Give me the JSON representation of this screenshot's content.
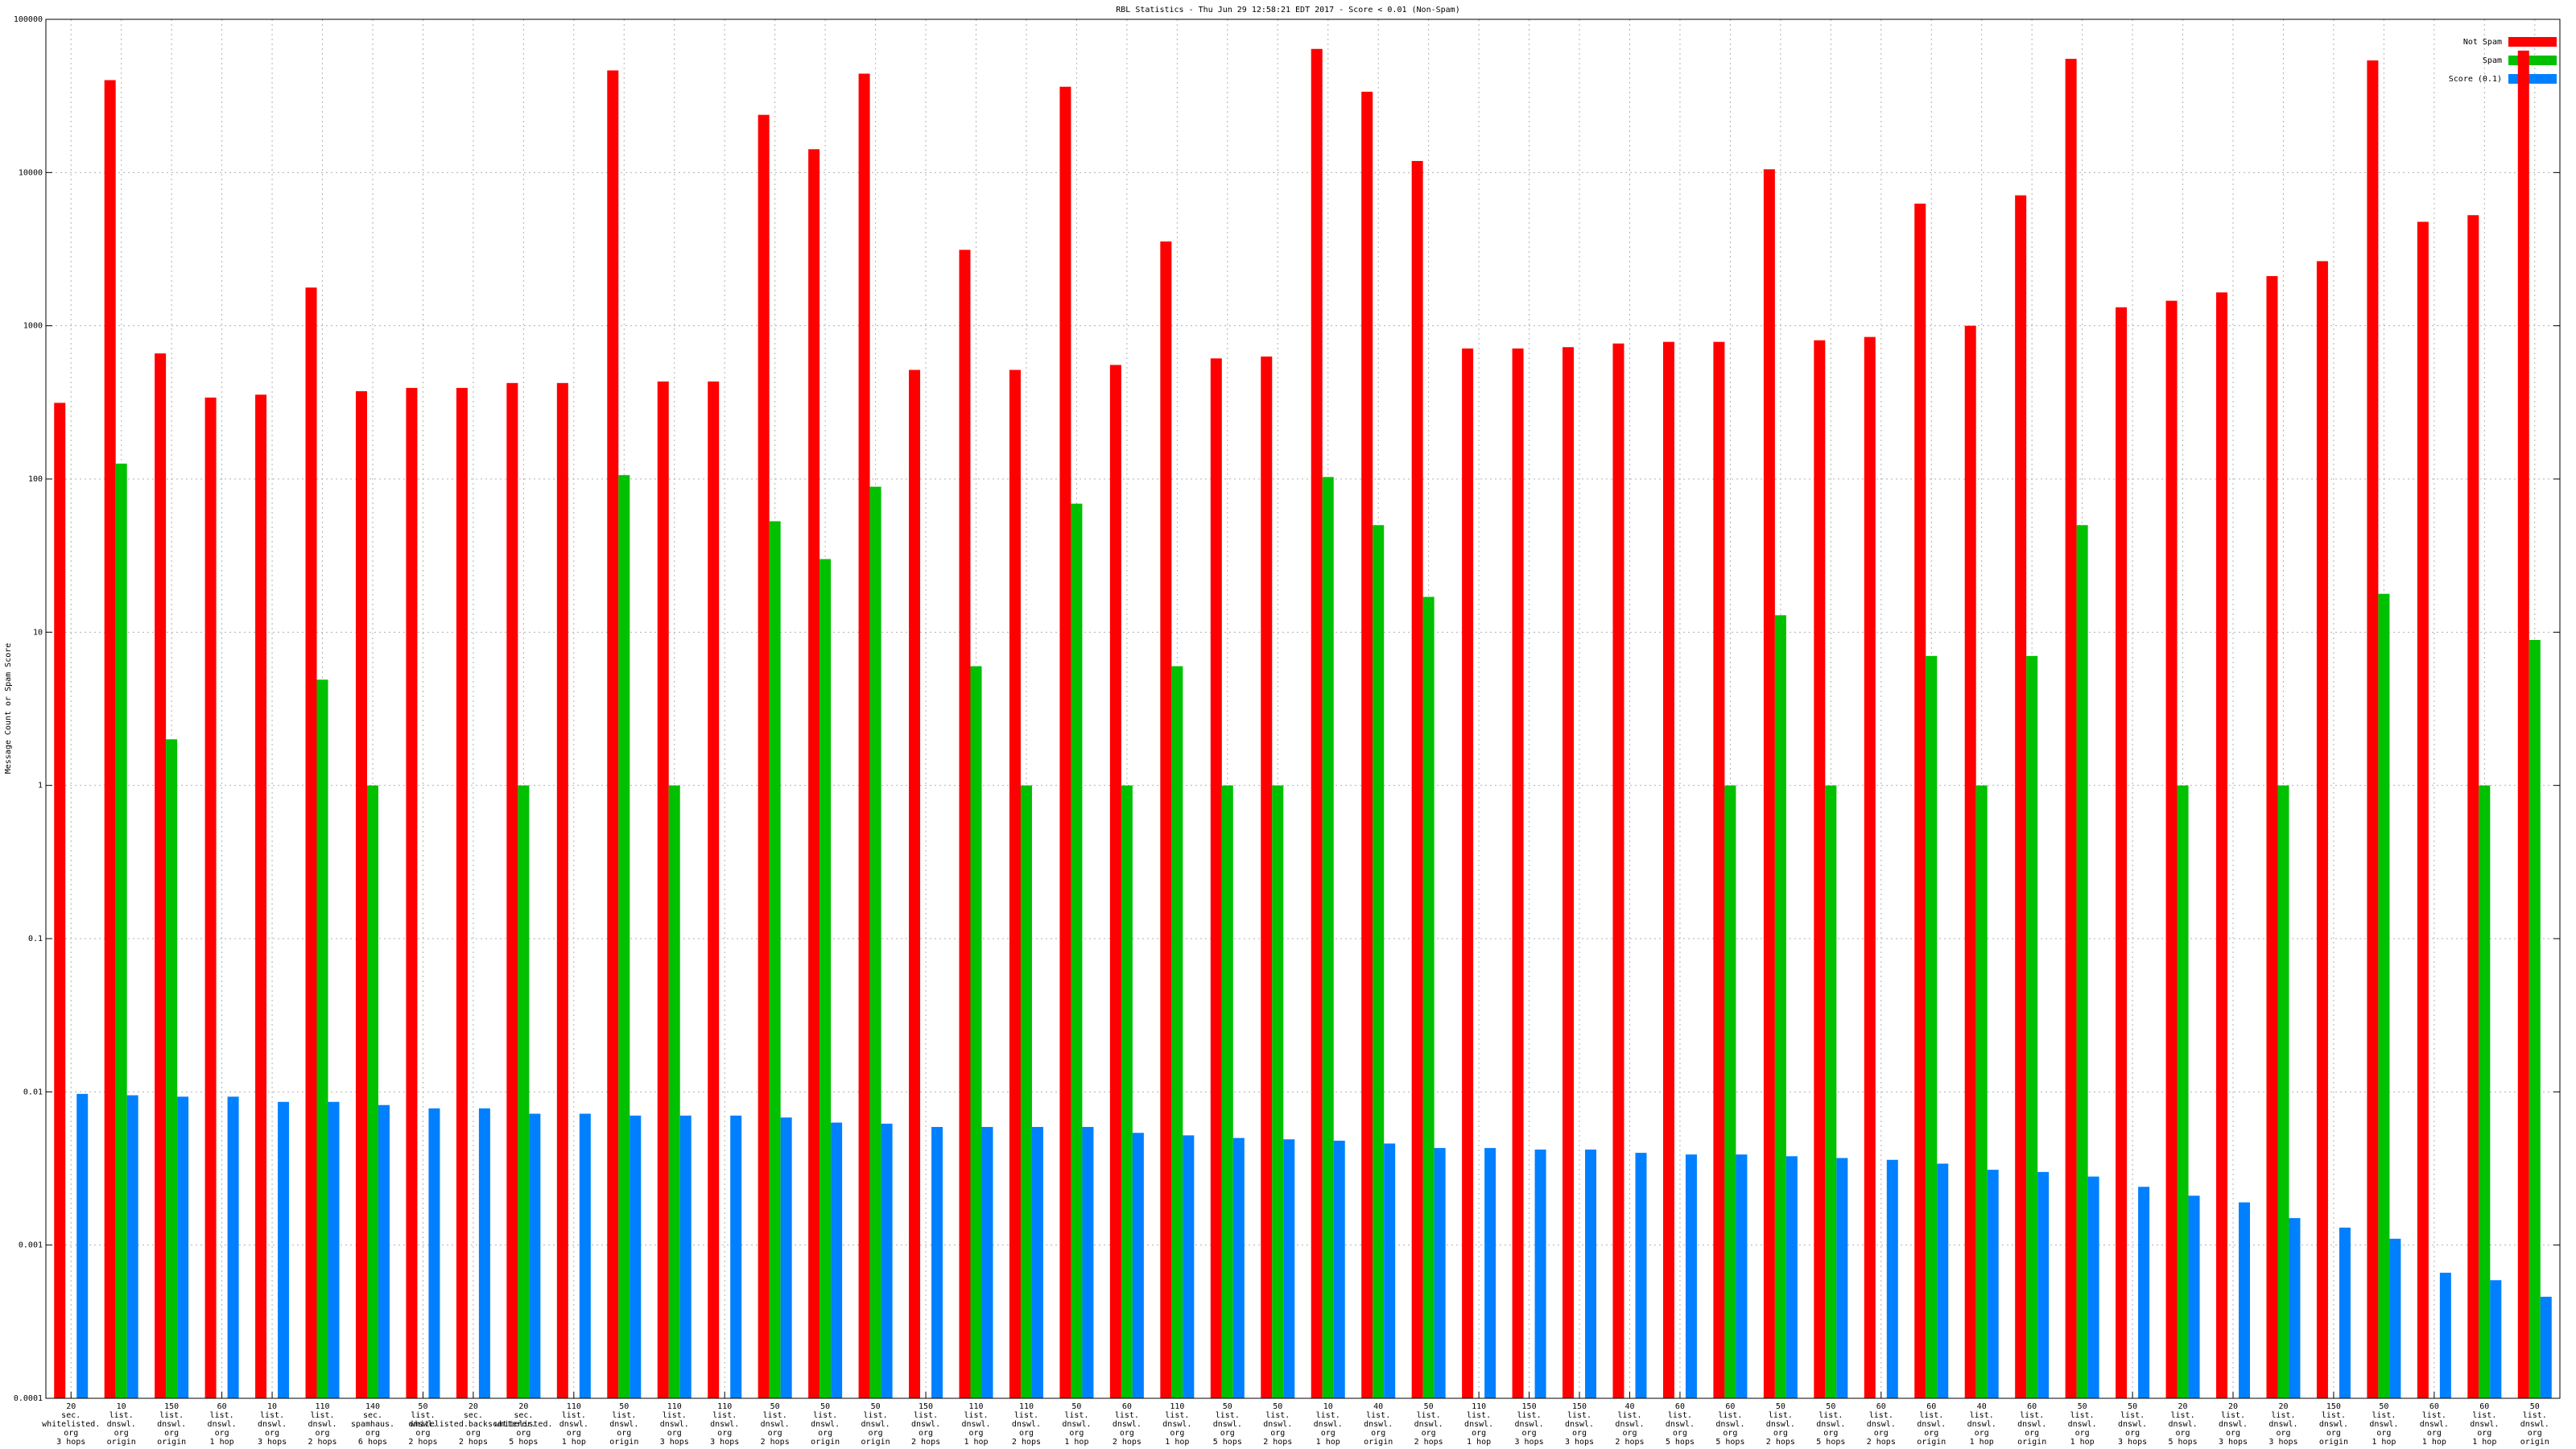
{
  "chart_data": {
    "type": "bar",
    "title": "RBL Statistics - Thu Jun 29 12:58:21 EDT 2017 - Score < 0.01 (Non-Spam)",
    "y_label": "Message Count or Spam Score",
    "y_scale": "log",
    "grid": true,
    "legend_position": "top-right",
    "ylim": [
      0.0001,
      100000
    ],
    "yticks": [
      0.0001,
      0.001,
      0.01,
      0.1,
      1,
      10,
      100,
      1000,
      10000,
      100000
    ],
    "categories": [
      [
        "20",
        "sec.",
        "whitelisted.",
        "org",
        "3 hops"
      ],
      [
        "10",
        "list.",
        "dnswl.",
        "org",
        "origin"
      ],
      [
        "150",
        "list.",
        "dnswl.",
        "org",
        "origin"
      ],
      [
        "60",
        "list.",
        "dnswl.",
        "org",
        "1 hop"
      ],
      [
        "10",
        "list.",
        "dnswl.",
        "org",
        "3 hops"
      ],
      [
        "110",
        "list.",
        "dnswl.",
        "org",
        "2 hops"
      ],
      [
        "140",
        "sec.",
        "spamhaus.",
        "org",
        "6 hops"
      ],
      [
        "50",
        "list.",
        "dnswl.",
        "org",
        "2 hops"
      ],
      [
        "20",
        "sec.",
        "whitelisted.backscatterer.",
        "org",
        "2 hops"
      ],
      [
        "20",
        "sec.",
        "whitelisted.",
        "org",
        "5 hops"
      ],
      [
        "110",
        "list.",
        "dnswl.",
        "org",
        "1 hop"
      ],
      [
        "50",
        "list.",
        "dnswl.",
        "org",
        "origin"
      ],
      [
        "110",
        "list.",
        "dnswl.",
        "org",
        "3 hops"
      ],
      [
        "110",
        "list.",
        "dnswl.",
        "org",
        "3 hops"
      ],
      [
        "50",
        "list.",
        "dnswl.",
        "org",
        "2 hops"
      ],
      [
        "50",
        "list.",
        "dnswl.",
        "org",
        "origin"
      ],
      [
        "50",
        "list.",
        "dnswl.",
        "org",
        "origin"
      ],
      [
        "150",
        "list.",
        "dnswl.",
        "org",
        "2 hops"
      ],
      [
        "110",
        "list.",
        "dnswl.",
        "org",
        "1 hop"
      ],
      [
        "110",
        "list.",
        "dnswl.",
        "org",
        "2 hops"
      ],
      [
        "50",
        "list.",
        "dnswl.",
        "org",
        "1 hop"
      ],
      [
        "60",
        "list.",
        "dnswl.",
        "org",
        "2 hops"
      ],
      [
        "110",
        "list.",
        "dnswl.",
        "org",
        "1 hop"
      ],
      [
        "50",
        "list.",
        "dnswl.",
        "org",
        "5 hops"
      ],
      [
        "50",
        "list.",
        "dnswl.",
        "org",
        "2 hops"
      ],
      [
        "10",
        "list.",
        "dnswl.",
        "org",
        "1 hop"
      ],
      [
        "40",
        "list.",
        "dnswl.",
        "org",
        "origin"
      ],
      [
        "50",
        "list.",
        "dnswl.",
        "org",
        "2 hops"
      ],
      [
        "110",
        "list.",
        "dnswl.",
        "org",
        "1 hop"
      ],
      [
        "150",
        "list.",
        "dnswl.",
        "org",
        "3 hops"
      ],
      [
        "150",
        "list.",
        "dnswl.",
        "org",
        "3 hops"
      ],
      [
        "40",
        "list.",
        "dnswl.",
        "org",
        "2 hops"
      ],
      [
        "60",
        "list.",
        "dnswl.",
        "org",
        "5 hops"
      ],
      [
        "60",
        "list.",
        "dnswl.",
        "org",
        "5 hops"
      ],
      [
        "50",
        "list.",
        "dnswl.",
        "org",
        "2 hops"
      ],
      [
        "50",
        "list.",
        "dnswl.",
        "org",
        "5 hops"
      ],
      [
        "60",
        "list.",
        "dnswl.",
        "org",
        "2 hops"
      ],
      [
        "60",
        "list.",
        "dnswl.",
        "org",
        "origin"
      ],
      [
        "40",
        "list.",
        "dnswl.",
        "org",
        "1 hop"
      ],
      [
        "60",
        "list.",
        "dnswl.",
        "org",
        "origin"
      ],
      [
        "50",
        "list.",
        "dnswl.",
        "org",
        "1 hop"
      ],
      [
        "50",
        "list.",
        "dnswl.",
        "org",
        "3 hops"
      ],
      [
        "20",
        "list.",
        "dnswl.",
        "org",
        "5 hops"
      ],
      [
        "20",
        "list.",
        "dnswl.",
        "org",
        "3 hops"
      ],
      [
        "20",
        "list.",
        "dnswl.",
        "org",
        "3 hops"
      ],
      [
        "150",
        "list.",
        "dnswl.",
        "org",
        "origin"
      ],
      [
        "50",
        "list.",
        "dnswl.",
        "org",
        "1 hop"
      ],
      [
        "60",
        "list.",
        "dnswl.",
        "org",
        "1 hop"
      ],
      [
        "60",
        "list.",
        "dnswl.",
        "org",
        "1 hop"
      ],
      [
        "50",
        "list.",
        "dnswl.",
        "org",
        "origin"
      ]
    ],
    "series": [
      {
        "name": "Not Spam",
        "color": "#ff0000",
        "values": [
          314,
          40100,
          660,
          340,
          355,
          1775,
          374,
          393,
          393,
          423,
          423,
          46400,
          433,
          433,
          23800,
          14200,
          44200,
          515,
          3130,
          515,
          36300,
          555,
          3550,
          612,
          630,
          64100,
          33700,
          11900,
          711,
          711,
          725,
          766,
          785,
          785,
          10500,
          804,
          845,
          6270,
          1000,
          7100,
          55200,
          1320,
          1456,
          1650,
          2110,
          2640,
          53900,
          4770,
          5270,
          62500
        ]
      },
      {
        "name": "Spam",
        "color": "#00c000",
        "values": [
          null,
          126,
          2,
          null,
          null,
          4.9,
          1,
          null,
          null,
          1,
          null,
          106,
          1,
          null,
          53,
          30,
          89,
          null,
          6,
          1,
          69,
          1,
          6,
          1,
          1,
          103,
          50,
          17,
          null,
          null,
          null,
          null,
          null,
          1,
          12.9,
          1,
          null,
          7,
          1,
          7,
          50,
          null,
          1,
          null,
          1,
          null,
          17.8,
          null,
          1,
          8.9
        ]
      },
      {
        "name": "Score (0.1)",
        "color": "#0080ff",
        "values": [
          0.0097,
          0.0095,
          0.0093,
          0.0093,
          0.0086,
          0.0086,
          0.0082,
          0.0078,
          0.0078,
          0.0072,
          0.0072,
          0.007,
          0.007,
          0.007,
          0.0068,
          0.0063,
          0.0062,
          0.0059,
          0.0059,
          0.0059,
          0.0059,
          0.0054,
          0.0052,
          0.005,
          0.0049,
          0.0048,
          0.0046,
          0.0043,
          0.0043,
          0.0042,
          0.0042,
          0.004,
          0.0039,
          0.0039,
          0.0038,
          0.0037,
          0.0036,
          0.0034,
          0.0031,
          0.003,
          0.0028,
          0.0024,
          0.0021,
          0.0019,
          0.0015,
          0.0013,
          0.0011,
          0.00066,
          0.00059,
          0.00046
        ]
      }
    ]
  }
}
